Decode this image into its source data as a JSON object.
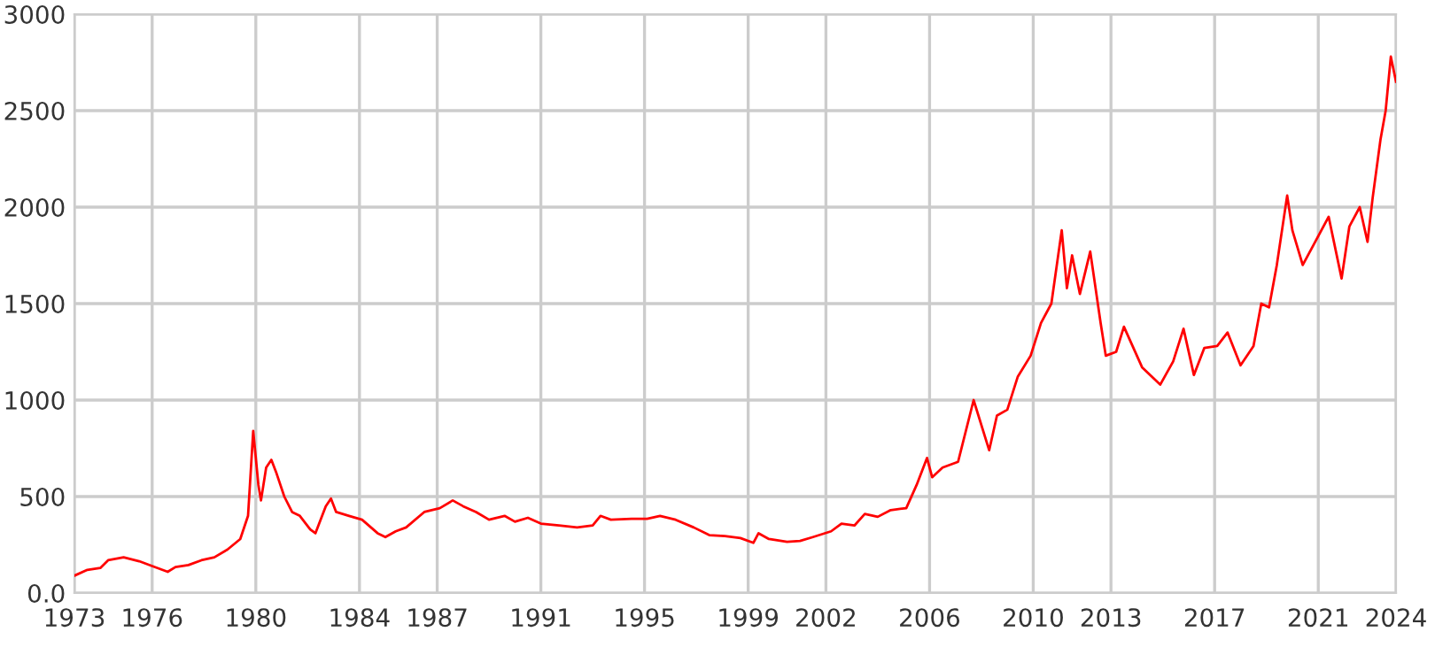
{
  "chart_data": {
    "type": "line",
    "x": [
      1973.0,
      1973.5,
      1974.0,
      1974.3,
      1974.9,
      1975.5,
      1976.0,
      1976.6,
      1976.9,
      1977.4,
      1977.9,
      1978.4,
      1978.9,
      1979.4,
      1979.7,
      1979.9,
      1980.1,
      1980.2,
      1980.4,
      1980.6,
      1980.8,
      1981.1,
      1981.4,
      1981.7,
      1982.1,
      1982.3,
      1982.7,
      1982.9,
      1983.1,
      1983.6,
      1984.1,
      1984.7,
      1985.0,
      1985.4,
      1985.8,
      1986.5,
      1987.1,
      1987.6,
      1988.0,
      1988.5,
      1989.0,
      1989.6,
      1990.0,
      1990.5,
      1991.0,
      1991.7,
      1992.4,
      1993.0,
      1993.3,
      1993.7,
      1994.5,
      1995.1,
      1995.6,
      1996.2,
      1996.9,
      1997.5,
      1998.1,
      1998.7,
      1999.2,
      1999.4,
      1999.8,
      2000.5,
      2001.0,
      2001.5,
      2002.2,
      2002.6,
      2003.1,
      2003.5,
      2004.0,
      2004.5,
      2005.1,
      2005.5,
      2005.9,
      2006.1,
      2006.5,
      2007.1,
      2007.7,
      2008.3,
      2008.6,
      2009.0,
      2009.4,
      2009.9,
      2010.3,
      2010.7,
      2011.1,
      2011.3,
      2011.5,
      2011.8,
      2012.2,
      2012.6,
      2012.8,
      2013.2,
      2013.5,
      2014.2,
      2014.9,
      2015.4,
      2015.8,
      2016.2,
      2016.6,
      2017.1,
      2017.5,
      2018.0,
      2018.5,
      2018.8,
      2019.1,
      2019.4,
      2019.8,
      2020.0,
      2020.4,
      2020.8,
      2021.4,
      2021.9,
      2022.2,
      2022.6,
      2022.9,
      2023.1,
      2023.4,
      2023.6,
      2023.8,
      2024.0
    ],
    "series": [
      {
        "color": "#ff0000",
        "values": [
          90,
          120,
          130,
          170,
          185,
          165,
          140,
          110,
          135,
          145,
          170,
          185,
          225,
          280,
          400,
          840,
          560,
          480,
          650,
          690,
          620,
          500,
          420,
          400,
          330,
          310,
          450,
          490,
          420,
          400,
          380,
          310,
          290,
          320,
          340,
          420,
          440,
          480,
          450,
          420,
          380,
          400,
          370,
          390,
          360,
          350,
          340,
          350,
          400,
          380,
          385,
          385,
          400,
          380,
          340,
          300,
          295,
          285,
          260,
          310,
          280,
          265,
          270,
          290,
          320,
          360,
          350,
          410,
          395,
          430,
          440,
          560,
          700,
          600,
          650,
          680,
          1000,
          740,
          920,
          950,
          1120,
          1230,
          1400,
          1500,
          1880,
          1580,
          1750,
          1550,
          1770,
          1400,
          1230,
          1250,
          1380,
          1170,
          1080,
          1200,
          1370,
          1130,
          1270,
          1280,
          1350,
          1180,
          1280,
          1500,
          1480,
          1700,
          2060,
          1880,
          1700,
          1800,
          1950,
          1630,
          1900,
          2000,
          1820,
          2050,
          2350,
          2500,
          2780,
          2650
        ]
      }
    ],
    "xlim": [
      1973,
      2024
    ],
    "xticks": [
      1973,
      1976,
      1980,
      1984,
      1987,
      1991,
      1995,
      1999,
      2002,
      2006,
      2010,
      2013,
      2017,
      2021,
      2024
    ],
    "ylim": [
      0,
      3000
    ],
    "yticks": [
      {
        "value": 0,
        "label": "0.0"
      },
      500,
      1000,
      1500,
      2000,
      2500,
      3000
    ],
    "grid": true,
    "marker": "none",
    "line_style": "solid",
    "legend": false
  }
}
